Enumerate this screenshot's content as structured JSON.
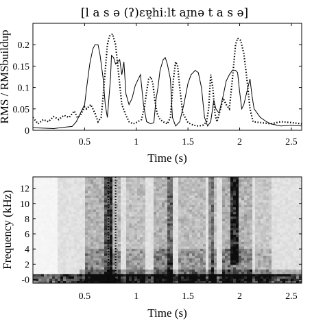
{
  "title": "[l a s ə  (ʔ)ɛɐ̯hiːlt aɪ̯nə  t a s ə]",
  "chart_data": [
    {
      "type": "line",
      "xlabel": "Time (s)",
      "ylabel": "RMS / RMSbuildup",
      "xlim": [
        0,
        2.6
      ],
      "ylim": [
        0,
        0.25
      ],
      "xticks": [
        0.5,
        1,
        1.5,
        2,
        2.5
      ],
      "xtick_labels": [
        "0.5",
        "1",
        "1.5",
        "2",
        "2.5"
      ],
      "yticks": [
        0,
        0.05,
        0.1,
        0.15,
        0.2
      ],
      "ytick_labels": [
        "0",
        "0.05",
        "0.1",
        "0.15",
        "0.2"
      ],
      "grid": false,
      "series": [
        {
          "style": "solid",
          "color": "#000000",
          "points": [
            [
              0.0,
              0.006
            ],
            [
              0.1,
              0.005
            ],
            [
              0.2,
              0.004
            ],
            [
              0.3,
              0.007
            ],
            [
              0.38,
              0.009
            ],
            [
              0.42,
              0.02
            ],
            [
              0.46,
              0.04
            ],
            [
              0.5,
              0.06
            ],
            [
              0.52,
              0.1
            ],
            [
              0.55,
              0.155
            ],
            [
              0.58,
              0.19
            ],
            [
              0.6,
              0.2
            ],
            [
              0.63,
              0.2
            ],
            [
              0.65,
              0.175
            ],
            [
              0.68,
              0.12
            ],
            [
              0.7,
              0.06
            ],
            [
              0.72,
              0.03
            ],
            [
              0.75,
              0.12
            ],
            [
              0.76,
              0.175
            ],
            [
              0.78,
              0.17
            ],
            [
              0.8,
              0.155
            ],
            [
              0.84,
              0.165
            ],
            [
              0.86,
              0.13
            ],
            [
              0.88,
              0.16
            ],
            [
              0.9,
              0.085
            ],
            [
              0.93,
              0.06
            ],
            [
              0.96,
              0.075
            ],
            [
              0.99,
              0.105
            ],
            [
              1.01,
              0.115
            ],
            [
              1.04,
              0.13
            ],
            [
              1.07,
              0.06
            ],
            [
              1.1,
              0.02
            ],
            [
              1.14,
              0.015
            ],
            [
              1.17,
              0.018
            ],
            [
              1.19,
              0.07
            ],
            [
              1.21,
              0.1
            ],
            [
              1.23,
              0.14
            ],
            [
              1.26,
              0.165
            ],
            [
              1.28,
              0.17
            ],
            [
              1.3,
              0.155
            ],
            [
              1.33,
              0.12
            ],
            [
              1.35,
              0.03
            ],
            [
              1.38,
              0.01
            ],
            [
              1.42,
              0.02
            ],
            [
              1.46,
              0.06
            ],
            [
              1.5,
              0.11
            ],
            [
              1.53,
              0.13
            ],
            [
              1.57,
              0.14
            ],
            [
              1.6,
              0.135
            ],
            [
              1.63,
              0.1
            ],
            [
              1.66,
              0.03
            ],
            [
              1.69,
              0.01
            ],
            [
              1.72,
              0.02
            ],
            [
              1.75,
              0.07
            ],
            [
              1.77,
              0.05
            ],
            [
              1.8,
              0.04
            ],
            [
              1.84,
              0.08
            ],
            [
              1.87,
              0.115
            ],
            [
              1.9,
              0.13
            ],
            [
              1.93,
              0.14
            ],
            [
              1.96,
              0.14
            ],
            [
              1.98,
              0.135
            ],
            [
              2.0,
              0.09
            ],
            [
              2.02,
              0.05
            ],
            [
              2.04,
              0.06
            ],
            [
              2.07,
              0.09
            ],
            [
              2.1,
              0.12
            ],
            [
              2.12,
              0.08
            ],
            [
              2.14,
              0.05
            ],
            [
              2.2,
              0.03
            ],
            [
              2.26,
              0.02
            ],
            [
              2.3,
              0.015
            ],
            [
              2.4,
              0.01
            ],
            [
              2.5,
              0.012
            ],
            [
              2.6,
              0.01
            ]
          ]
        },
        {
          "style": "dotted",
          "color": "#000000",
          "points": [
            [
              0.0,
              0.03
            ],
            [
              0.05,
              0.015
            ],
            [
              0.1,
              0.025
            ],
            [
              0.15,
              0.02
            ],
            [
              0.2,
              0.032
            ],
            [
              0.25,
              0.025
            ],
            [
              0.3,
              0.035
            ],
            [
              0.35,
              0.03
            ],
            [
              0.4,
              0.045
            ],
            [
              0.43,
              0.03
            ],
            [
              0.46,
              0.035
            ],
            [
              0.5,
              0.055
            ],
            [
              0.52,
              0.05
            ],
            [
              0.56,
              0.06
            ],
            [
              0.6,
              0.04
            ],
            [
              0.63,
              0.02
            ],
            [
              0.66,
              0.03
            ],
            [
              0.68,
              0.08
            ],
            [
              0.7,
              0.14
            ],
            [
              0.72,
              0.2
            ],
            [
              0.74,
              0.22
            ],
            [
              0.77,
              0.225
            ],
            [
              0.8,
              0.2
            ],
            [
              0.83,
              0.13
            ],
            [
              0.86,
              0.06
            ],
            [
              0.9,
              0.035
            ],
            [
              0.93,
              0.02
            ],
            [
              0.97,
              0.015
            ],
            [
              1.0,
              0.018
            ],
            [
              1.05,
              0.025
            ],
            [
              1.08,
              0.055
            ],
            [
              1.1,
              0.09
            ],
            [
              1.12,
              0.12
            ],
            [
              1.14,
              0.125
            ],
            [
              1.16,
              0.11
            ],
            [
              1.18,
              0.07
            ],
            [
              1.2,
              0.04
            ],
            [
              1.23,
              0.025
            ],
            [
              1.26,
              0.02
            ],
            [
              1.3,
              0.015
            ],
            [
              1.33,
              0.03
            ],
            [
              1.36,
              0.12
            ],
            [
              1.38,
              0.16
            ],
            [
              1.4,
              0.15
            ],
            [
              1.42,
              0.1
            ],
            [
              1.45,
              0.04
            ],
            [
              1.5,
              0.018
            ],
            [
              1.55,
              0.012
            ],
            [
              1.6,
              0.01
            ],
            [
              1.65,
              0.012
            ],
            [
              1.68,
              0.02
            ],
            [
              1.7,
              0.05
            ],
            [
              1.72,
              0.13
            ],
            [
              1.74,
              0.1
            ],
            [
              1.76,
              0.04
            ],
            [
              1.78,
              0.02
            ],
            [
              1.81,
              0.045
            ],
            [
              1.84,
              0.075
            ],
            [
              1.87,
              0.06
            ],
            [
              1.9,
              0.05
            ],
            [
              1.93,
              0.12
            ],
            [
              1.96,
              0.2
            ],
            [
              1.98,
              0.215
            ],
            [
              2.01,
              0.21
            ],
            [
              2.04,
              0.18
            ],
            [
              2.07,
              0.12
            ],
            [
              2.1,
              0.05
            ],
            [
              2.13,
              0.02
            ],
            [
              2.2,
              0.018
            ],
            [
              2.3,
              0.015
            ],
            [
              2.4,
              0.02
            ],
            [
              2.5,
              0.018
            ],
            [
              2.6,
              0.015
            ]
          ]
        }
      ]
    },
    {
      "type": "heatmap",
      "xlabel": "Time (s)",
      "ylabel": "Frequency (kHz)",
      "xlim": [
        0,
        2.6
      ],
      "ylim": [
        -0.5,
        13.5
      ],
      "xticks": [
        0.5,
        1,
        1.5,
        2,
        2.5
      ],
      "xtick_labels": [
        "0.5",
        "1",
        "1.5",
        "2",
        "2.5"
      ],
      "yticks": [
        0,
        2,
        4,
        6,
        8,
        10,
        12
      ],
      "ytick_labels": [
        "-0",
        "2",
        "4",
        "6",
        "8",
        "10",
        "12"
      ],
      "grid": false,
      "vertical_markers": [
        {
          "x": 0.73,
          "style": "dotted"
        },
        {
          "x": 0.8,
          "style": "dotted"
        }
      ],
      "colormap": [
        "#ffffff",
        "#000000"
      ]
    }
  ]
}
